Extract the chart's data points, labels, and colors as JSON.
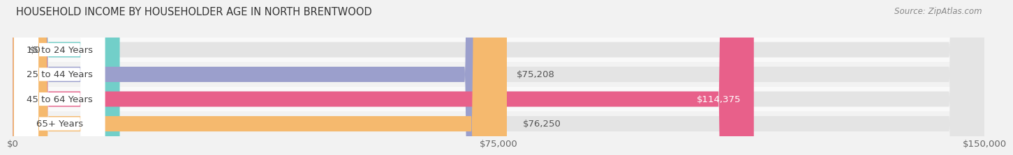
{
  "title": "HOUSEHOLD INCOME BY HOUSEHOLDER AGE IN NORTH BRENTWOOD",
  "source_text": "Source: ZipAtlas.com",
  "categories": [
    "15 to 24 Years",
    "25 to 44 Years",
    "45 to 64 Years",
    "65+ Years"
  ],
  "values": [
    0,
    75208,
    114375,
    76250
  ],
  "bar_colors": [
    "#72cfc9",
    "#9b9fcc",
    "#e8608a",
    "#f5b96e"
  ],
  "background_color": "#f2f2f2",
  "bar_bg_color": "#e4e4e4",
  "row_bg_colors": [
    "#f9f9f9",
    "#f2f2f2"
  ],
  "xlim": [
    0,
    150000
  ],
  "xticks": [
    0,
    75000,
    150000
  ],
  "xtick_labels": [
    "$0",
    "$75,000",
    "$150,000"
  ],
  "bar_height": 0.62,
  "label_fontsize": 9.5,
  "title_fontsize": 10.5,
  "source_fontsize": 8.5,
  "value_label_color_inside": "#ffffff",
  "value_label_color_outside": "#555555",
  "label_bg_color": "#ffffff",
  "grid_color": "#d0d0d0",
  "text_color": "#444444"
}
